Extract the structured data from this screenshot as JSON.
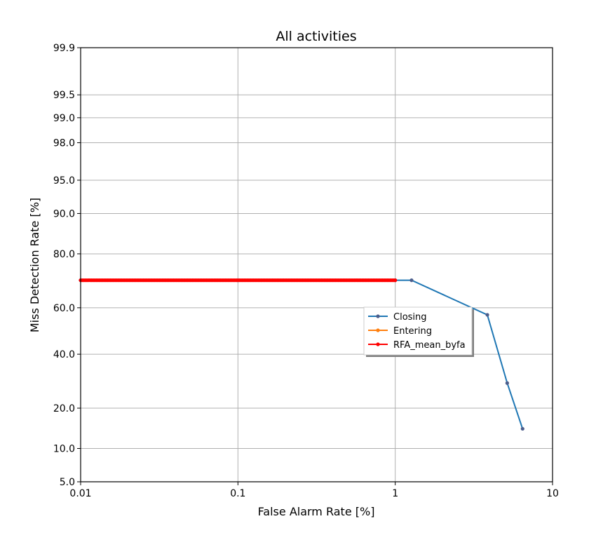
{
  "chart_data": {
    "type": "line",
    "title": "All activities",
    "xlabel": "False Alarm Rate [%]",
    "ylabel": "Miss Detection Rate [%]",
    "x_scale": "log",
    "y_scale": "normal-probability",
    "xlim": [
      0.01,
      10
    ],
    "ylim": [
      5.0,
      99.9
    ],
    "x_ticks": [
      0.01,
      0.1,
      1,
      10
    ],
    "x_tick_labels": [
      "0.01",
      "0.1",
      "1",
      "10"
    ],
    "y_ticks": [
      5.0,
      10.0,
      20.0,
      40.0,
      60.0,
      80.0,
      90.0,
      95.0,
      98.0,
      99.0,
      99.5,
      99.9
    ],
    "y_tick_labels": [
      "5.0",
      "10.0",
      "20.0",
      "40.0",
      "60.0",
      "80.0",
      "90.0",
      "95.0",
      "98.0",
      "99.0",
      "99.5",
      "99.9"
    ],
    "grid": true,
    "legend_position": "center-right",
    "series": [
      {
        "name": "Closing",
        "color": "#1f77b4",
        "marker_color": "#4c5e8c",
        "x": [
          0.01,
          0.1,
          1.0,
          1.27,
          3.85,
          5.15,
          6.45
        ],
        "y": [
          71.0,
          71.0,
          71.0,
          71.0,
          57.0,
          28.5,
          14.3
        ]
      },
      {
        "name": "Entering",
        "color": "#ff7f0e",
        "x": [],
        "y": []
      },
      {
        "name": "RFA_mean_byfa",
        "color": "#ff0000",
        "x_range": [
          0.01,
          1.0
        ],
        "points_per_decade": 100,
        "y_constant": 71.0
      }
    ]
  }
}
